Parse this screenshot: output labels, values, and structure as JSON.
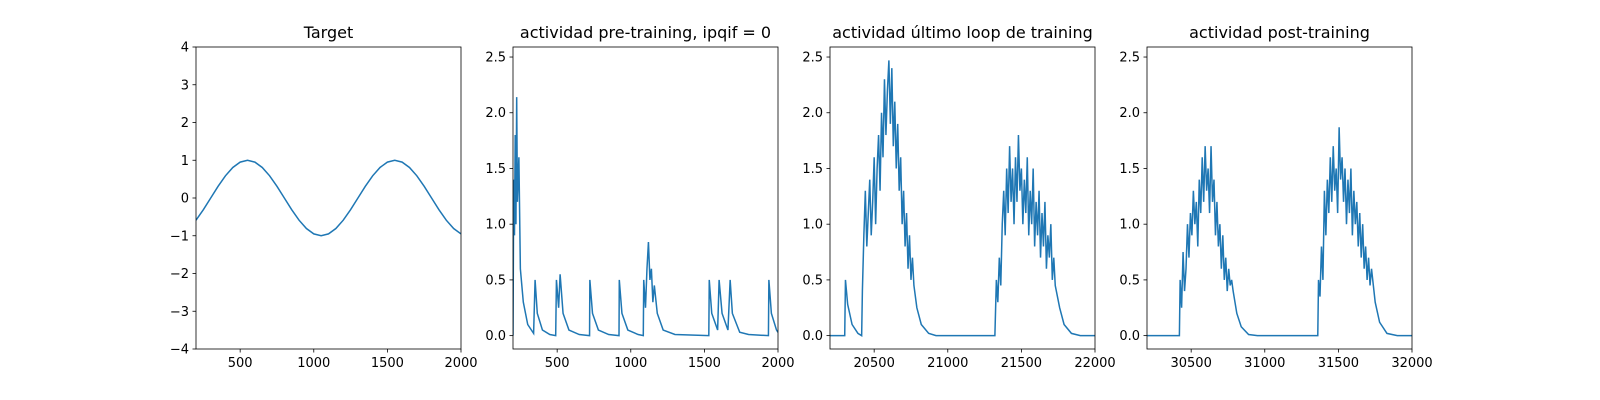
{
  "chart_data": [
    {
      "type": "line",
      "title": "Target",
      "color": "#1f77b4",
      "xlim": [
        200,
        2000
      ],
      "xticks": [
        500,
        1000,
        1500,
        2000
      ],
      "ylim": [
        -4,
        4
      ],
      "yticks": [
        {
          "value": -4,
          "label": "−4"
        },
        {
          "value": -3,
          "label": "−3"
        },
        {
          "value": -2,
          "label": "−2"
        },
        {
          "value": -1,
          "label": "−1"
        },
        0,
        1,
        2,
        3,
        4
      ],
      "x": [
        200,
        250,
        300,
        350,
        400,
        450,
        500,
        550,
        600,
        650,
        700,
        750,
        800,
        850,
        900,
        950,
        1000,
        1050,
        1100,
        1150,
        1200,
        1250,
        1300,
        1350,
        1400,
        1450,
        1500,
        1550,
        1600,
        1650,
        1700,
        1750,
        1800,
        1850,
        1900,
        1950,
        2000
      ],
      "values": [
        -0.588,
        -0.309,
        0,
        0.309,
        0.588,
        0.809,
        0.951,
        1,
        0.951,
        0.809,
        0.588,
        0.309,
        0,
        -0.309,
        -0.588,
        -0.809,
        -0.951,
        -1,
        -0.951,
        -0.809,
        -0.588,
        -0.309,
        0,
        0.309,
        0.588,
        0.809,
        0.951,
        1,
        0.951,
        0.809,
        0.588,
        0.309,
        0,
        -0.309,
        -0.588,
        -0.809,
        -0.951
      ]
    },
    {
      "type": "line",
      "title": "actividad pre-training, ipqif = 0",
      "color": "#1f77b4",
      "xlim": [
        200,
        2000
      ],
      "xticks": [
        500,
        1000,
        1500,
        2000
      ],
      "ylim": [
        -0.12,
        2.59
      ],
      "yticks": [
        {
          "value": 0,
          "label": "0.0"
        },
        0.5,
        {
          "value": 1,
          "label": "1.0"
        },
        1.5,
        {
          "value": 2,
          "label": "2.0"
        },
        2.5
      ],
      "x": [
        200,
        205,
        210,
        215,
        220,
        225,
        230,
        240,
        250,
        270,
        300,
        340,
        350,
        365,
        400,
        450,
        490,
        495,
        510,
        520,
        540,
        580,
        650,
        720,
        722,
        740,
        780,
        850,
        920,
        922,
        940,
        980,
        1050,
        1085,
        1088,
        1100,
        1110,
        1120,
        1130,
        1140,
        1150,
        1160,
        1180,
        1220,
        1300,
        1530,
        1533,
        1550,
        1590,
        1600,
        1620,
        1660,
        1675,
        1690,
        1740,
        1800,
        1935,
        1938,
        1955,
        1990,
        2000
      ],
      "values": [
        0,
        1.4,
        0.9,
        1.8,
        1.0,
        2.14,
        1.2,
        1.6,
        0.6,
        0.3,
        0.1,
        0.02,
        0.5,
        0.2,
        0.05,
        0.01,
        0,
        0.5,
        0.25,
        0.55,
        0.2,
        0.05,
        0.01,
        0,
        0.5,
        0.2,
        0.05,
        0.01,
        0,
        0.5,
        0.2,
        0.05,
        0.01,
        0,
        0.5,
        0.25,
        0.6,
        0.84,
        0.5,
        0.6,
        0.3,
        0.45,
        0.2,
        0.05,
        0.01,
        0,
        0.5,
        0.2,
        0.05,
        0.5,
        0.2,
        0.05,
        0.5,
        0.2,
        0.03,
        0.01,
        0,
        0.5,
        0.2,
        0.05,
        0.03
      ]
    },
    {
      "type": "line",
      "title": "actividad último loop de training",
      "color": "#1f77b4",
      "xlim": [
        20200,
        22000
      ],
      "xticks": [
        20500,
        21000,
        21500,
        22000
      ],
      "ylim": [
        -0.12,
        2.59
      ],
      "yticks": [
        {
          "value": 0,
          "label": "0.0"
        },
        0.5,
        {
          "value": 1,
          "label": "1.0"
        },
        1.5,
        {
          "value": 2,
          "label": "2.0"
        },
        2.5
      ],
      "x": [
        20200,
        20300,
        20305,
        20320,
        20350,
        20390,
        20415,
        20420,
        20430,
        20440,
        20450,
        20460,
        20470,
        20480,
        20490,
        20500,
        20510,
        20520,
        20530,
        20540,
        20550,
        20560,
        20570,
        20580,
        20590,
        20600,
        20610,
        20620,
        20630,
        20640,
        20650,
        20660,
        20670,
        20680,
        20690,
        20700,
        20710,
        20720,
        20730,
        20740,
        20750,
        20760,
        20770,
        20790,
        20820,
        20870,
        20920,
        21320,
        21330,
        21340,
        21350,
        21360,
        21370,
        21380,
        21390,
        21400,
        21410,
        21420,
        21430,
        21440,
        21450,
        21460,
        21470,
        21480,
        21490,
        21500,
        21510,
        21520,
        21530,
        21540,
        21550,
        21560,
        21570,
        21580,
        21590,
        21600,
        21610,
        21620,
        21630,
        21640,
        21650,
        21660,
        21670,
        21680,
        21690,
        21700,
        21710,
        21720,
        21730,
        21760,
        21790,
        21840,
        21900,
        22000
      ],
      "values": [
        0,
        0,
        0.5,
        0.28,
        0.1,
        0.02,
        0,
        0.4,
        0.9,
        1.3,
        0.8,
        1.1,
        1.4,
        0.9,
        1.2,
        1.6,
        1.0,
        1.5,
        1.8,
        1.3,
        2.0,
        1.6,
        2.3,
        1.8,
        2.2,
        2.47,
        1.9,
        2.4,
        1.7,
        2.1,
        1.5,
        1.9,
        1.3,
        1.6,
        1.0,
        1.3,
        0.8,
        1.1,
        0.6,
        0.9,
        0.5,
        0.7,
        0.45,
        0.25,
        0.1,
        0.02,
        0,
        0,
        0.5,
        0.3,
        0.7,
        0.45,
        1.0,
        1.3,
        0.9,
        1.5,
        1.1,
        1.7,
        1.2,
        1.5,
        1.0,
        1.6,
        1.2,
        1.8,
        1.3,
        1.5,
        1.0,
        1.4,
        1.1,
        1.6,
        0.9,
        1.3,
        1.0,
        1.5,
        0.8,
        1.2,
        0.9,
        1.3,
        0.7,
        1.1,
        0.8,
        1.2,
        0.6,
        0.9,
        0.7,
        1.0,
        0.5,
        0.7,
        0.45,
        0.25,
        0.1,
        0.02,
        0,
        0
      ]
    },
    {
      "type": "line",
      "title": "actividad post-training",
      "color": "#1f77b4",
      "xlim": [
        30200,
        32000
      ],
      "xticks": [
        30500,
        31000,
        31500,
        32000
      ],
      "ylim": [
        -0.12,
        2.59
      ],
      "yticks": [
        {
          "value": 0,
          "label": "0.0"
        },
        0.5,
        {
          "value": 1,
          "label": "1.0"
        },
        1.5,
        {
          "value": 2,
          "label": "2.0"
        },
        2.5
      ],
      "x": [
        30200,
        30420,
        30425,
        30435,
        30445,
        30455,
        30465,
        30475,
        30485,
        30495,
        30505,
        30515,
        30525,
        30535,
        30545,
        30555,
        30565,
        30575,
        30585,
        30595,
        30605,
        30615,
        30625,
        30635,
        30645,
        30655,
        30665,
        30675,
        30685,
        30695,
        30705,
        30715,
        30725,
        30735,
        30745,
        30755,
        30765,
        30775,
        30785,
        30810,
        30840,
        30890,
        30950,
        31360,
        31365,
        31375,
        31385,
        31395,
        31405,
        31415,
        31425,
        31435,
        31445,
        31455,
        31465,
        31475,
        31485,
        31495,
        31505,
        31515,
        31525,
        31535,
        31545,
        31555,
        31565,
        31575,
        31585,
        31595,
        31605,
        31615,
        31625,
        31635,
        31645,
        31655,
        31665,
        31675,
        31685,
        31695,
        31705,
        31715,
        31725,
        31750,
        31780,
        31830,
        31900,
        32000
      ],
      "values": [
        0,
        0,
        0.5,
        0.25,
        0.75,
        0.4,
        0.6,
        1.0,
        0.7,
        1.1,
        0.9,
        1.3,
        1.0,
        1.2,
        0.8,
        1.4,
        1.1,
        1.6,
        1.2,
        1.7,
        1.3,
        1.5,
        1.1,
        1.7,
        1.2,
        1.4,
        0.9,
        1.2,
        0.8,
        1.0,
        0.6,
        0.9,
        0.5,
        0.7,
        0.4,
        0.6,
        0.45,
        0.5,
        0.4,
        0.2,
        0.08,
        0.01,
        0,
        0,
        0.5,
        0.35,
        0.8,
        0.5,
        1.3,
        0.9,
        1.4,
        1.1,
        1.6,
        1.2,
        1.7,
        1.3,
        1.5,
        1.1,
        1.87,
        1.4,
        1.6,
        1.2,
        1.5,
        1.0,
        1.4,
        1.1,
        1.5,
        0.9,
        1.3,
        1.0,
        1.2,
        0.8,
        1.1,
        0.7,
        1.0,
        0.6,
        0.8,
        0.5,
        0.7,
        0.45,
        0.6,
        0.3,
        0.12,
        0.02,
        0,
        0
      ]
    }
  ]
}
